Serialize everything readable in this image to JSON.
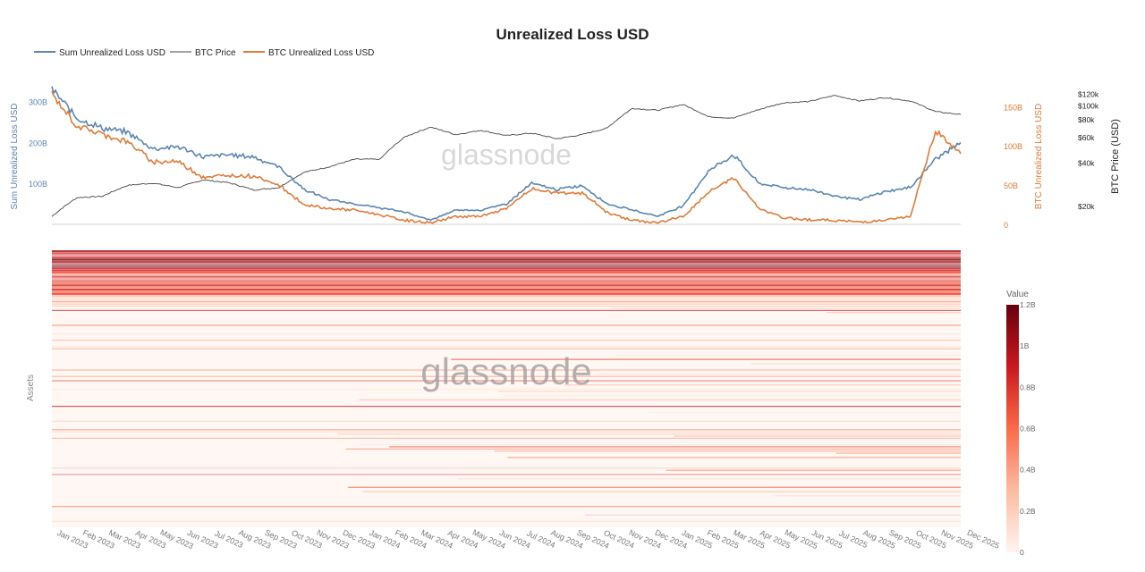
{
  "chart_data": [
    {
      "type": "line",
      "title": "Unrealized Loss USD",
      "x": [
        "2022-12-01",
        "2023-01-01",
        "2023-02-01",
        "2023-03-01",
        "2023-04-01",
        "2023-05-01",
        "2023-06-01",
        "2023-07-01",
        "2023-08-01",
        "2023-09-01",
        "2023-10-01",
        "2023-11-01",
        "2023-12-01",
        "2024-01-01",
        "2024-02-01",
        "2024-03-01",
        "2024-04-01",
        "2024-05-01",
        "2024-06-01",
        "2024-07-01",
        "2024-08-01",
        "2024-09-01",
        "2024-10-01",
        "2024-11-01",
        "2024-12-01",
        "2025-01-01",
        "2025-02-01",
        "2025-03-01",
        "2025-04-01",
        "2025-05-01",
        "2025-06-01",
        "2025-07-01",
        "2025-08-01",
        "2025-09-01",
        "2025-10-01",
        "2025-11-01",
        "2025-12-01"
      ],
      "series": [
        {
          "name": "Sum Unrealized Loss USD",
          "color": "#5b86b0",
          "axis": "left",
          "values": [
            330,
            260,
            235,
            225,
            185,
            190,
            165,
            170,
            165,
            140,
            85,
            60,
            50,
            40,
            30,
            10,
            35,
            35,
            50,
            100,
            85,
            95,
            50,
            35,
            20,
            45,
            130,
            170,
            100,
            90,
            85,
            70,
            60,
            80,
            90,
            160,
            200
          ]
        },
        {
          "name": "BTC Price",
          "color": "#444444",
          "axis": "right",
          "values": [
            17000,
            23000,
            23500,
            28000,
            29000,
            27000,
            30500,
            29200,
            26000,
            27000,
            34500,
            37700,
            42500,
            42500,
            61000,
            71000,
            63000,
            67500,
            62000,
            64500,
            59000,
            63000,
            70000,
            96000,
            93000,
            102000,
            84000,
            82000,
            94000,
            105000,
            107000,
            118000,
            108000,
            114000,
            108000,
            91000,
            87000
          ]
        },
        {
          "name": "BTC Unrealized Loss USD",
          "color": "#e07b39",
          "axis": "right2",
          "values": [
            165,
            125,
            115,
            105,
            80,
            80,
            60,
            62,
            62,
            50,
            25,
            20,
            18,
            12,
            5,
            2,
            10,
            10,
            20,
            45,
            40,
            40,
            15,
            5,
            2,
            10,
            40,
            60,
            20,
            8,
            6,
            5,
            3,
            5,
            10,
            120,
            90
          ]
        }
      ],
      "yaxis_left": {
        "label": "Sum Unrealized Loss USD",
        "ticks": [
          "100B",
          "200B",
          "300B"
        ],
        "ylim": [
          0,
          330
        ]
      },
      "yaxis_right": {
        "label": "BTC Unrealized Loss USD",
        "ticks": [
          "0",
          "50B",
          "100B",
          "150B"
        ],
        "ylim": [
          0,
          172
        ]
      },
      "yaxis_price": {
        "label": "BTC Price (USD)",
        "ticks": [
          "$20k",
          "$40k",
          "$60k",
          "$80k",
          "$100k",
          "$120k"
        ],
        "scale": "log",
        "ylim": [
          15000,
          130000
        ]
      },
      "legend": "top-left",
      "watermark": "glassnode"
    },
    {
      "type": "heatmap",
      "ylabel": "Assets",
      "x_ticks": [
        "Jan 2023",
        "Feb 2023",
        "Mar 2023",
        "Apr 2023",
        "May 2023",
        "Jun 2023",
        "Jul 2023",
        "Aug 2023",
        "Sep 2023",
        "Oct 2023",
        "Nov 2023",
        "Dec 2023",
        "Jan 2024",
        "Feb 2024",
        "Mar 2024",
        "Apr 2024",
        "May 2024",
        "Jun 2024",
        "Jul 2024",
        "Aug 2024",
        "Sep 2024",
        "Oct 2024",
        "Nov 2024",
        "Dec 2024",
        "Jan 2025",
        "Feb 2025",
        "Mar 2025",
        "Apr 2025",
        "May 2025",
        "Jun 2025",
        "Jul 2025",
        "Aug 2025",
        "Sep 2025",
        "Oct 2025",
        "Nov 2025",
        "Dec 2025"
      ],
      "colorbar": {
        "title": "Value",
        "ticks": [
          "0",
          "0.2B",
          "0.4B",
          "0.6B",
          "0.8B",
          "1B",
          "1.2B"
        ],
        "range": [
          0,
          1.2
        ],
        "colors": [
          "#fff5f0",
          "#fcbba1",
          "#fb6a4a",
          "#cb181d",
          "#67000d"
        ]
      },
      "watermark": "glassnode"
    }
  ]
}
